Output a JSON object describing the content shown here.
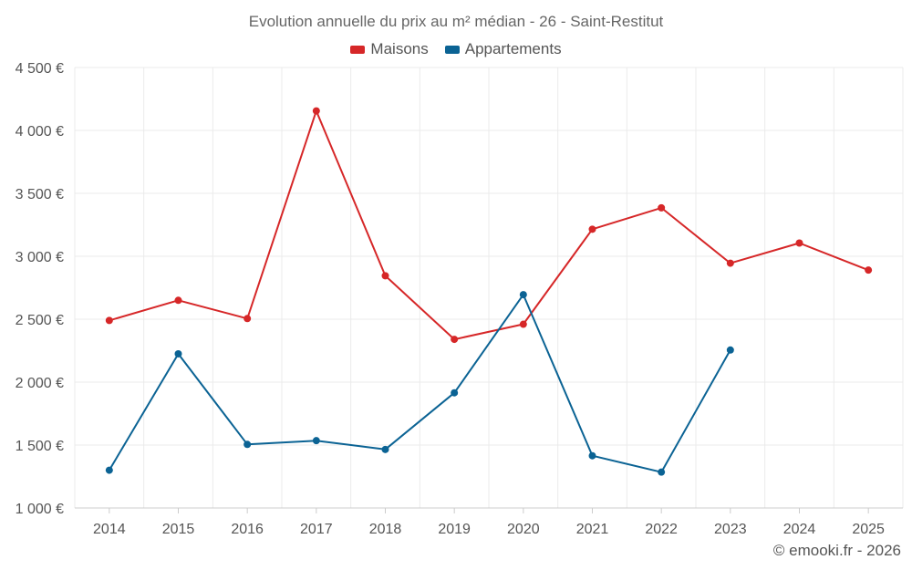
{
  "chart_data": {
    "type": "line",
    "title": "Evolution annuelle du prix au m² médian - 26 - Saint-Restitut",
    "categories": [
      "2014",
      "2015",
      "2016",
      "2017",
      "2018",
      "2019",
      "2020",
      "2021",
      "2022",
      "2023",
      "2024",
      "2025"
    ],
    "series": [
      {
        "name": "Maisons",
        "color": "#d62728",
        "values": [
          2490,
          2650,
          2505,
          4155,
          2845,
          2340,
          2460,
          3215,
          3385,
          2945,
          3105,
          2890
        ]
      },
      {
        "name": "Appartements",
        "color": "#0b6394",
        "values": [
          1300,
          2225,
          1505,
          1535,
          1465,
          1915,
          2695,
          1415,
          1285,
          2255,
          null,
          null
        ]
      }
    ],
    "ylim": [
      1000,
      4500
    ],
    "yticks": [
      1000,
      1500,
      2000,
      2500,
      3000,
      3500,
      4000,
      4500
    ],
    "ytick_labels": [
      "1 000 €",
      "1 500 €",
      "2 000 €",
      "2 500 €",
      "3 000 €",
      "3 500 €",
      "4 000 €",
      "4 500 €"
    ],
    "grid": true,
    "legend_position": "top-center"
  },
  "credit": "© emooki.fr - 2026"
}
